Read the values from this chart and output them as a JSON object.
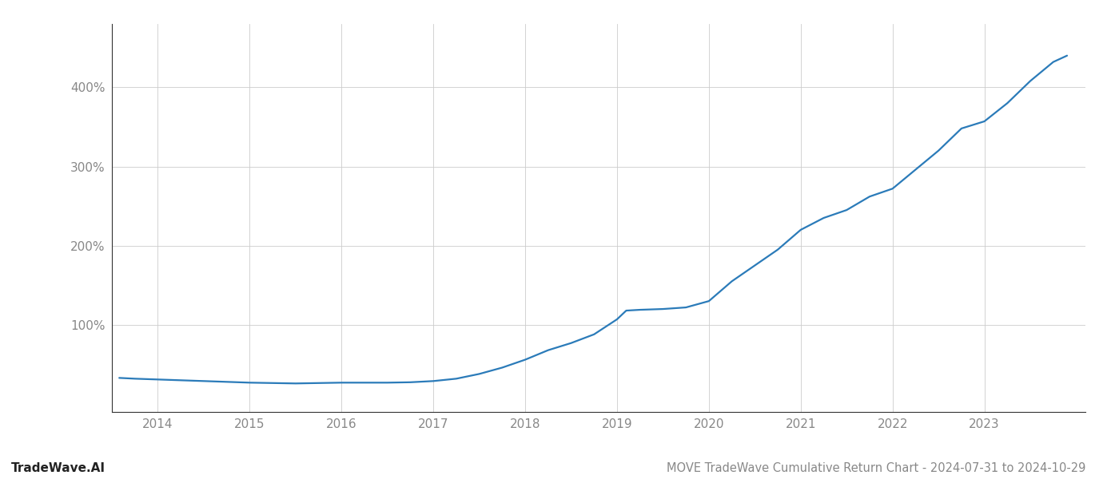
{
  "title": "MOVE TradeWave Cumulative Return Chart - 2024-07-31 to 2024-10-29",
  "watermark": "TradeWave.AI",
  "line_color": "#2b7bb9",
  "background_color": "#ffffff",
  "grid_color": "#cccccc",
  "x_years": [
    2013.58,
    2013.75,
    2014.0,
    2014.25,
    2014.5,
    2014.75,
    2015.0,
    2015.25,
    2015.5,
    2015.75,
    2016.0,
    2016.25,
    2016.5,
    2016.75,
    2017.0,
    2017.25,
    2017.5,
    2017.75,
    2018.0,
    2018.25,
    2018.5,
    2018.75,
    2019.0,
    2019.1,
    2019.25,
    2019.5,
    2019.75,
    2020.0,
    2020.25,
    2020.5,
    2020.75,
    2021.0,
    2021.25,
    2021.5,
    2021.75,
    2022.0,
    2022.25,
    2022.5,
    2022.75,
    2023.0,
    2023.25,
    2023.5,
    2023.75,
    2023.9
  ],
  "y_values": [
    33,
    32,
    31,
    30,
    29,
    28,
    27,
    26.5,
    26,
    26.5,
    27,
    27,
    27,
    27.5,
    29,
    32,
    38,
    46,
    56,
    68,
    77,
    88,
    107,
    118,
    119,
    120,
    122,
    130,
    155,
    175,
    195,
    220,
    235,
    245,
    262,
    272,
    296,
    320,
    348,
    357,
    380,
    408,
    432,
    440
  ],
  "yticks": [
    100,
    200,
    300,
    400
  ],
  "xlim": [
    2013.5,
    2024.1
  ],
  "ylim": [
    -10,
    480
  ],
  "xtick_years": [
    2014,
    2015,
    2016,
    2017,
    2018,
    2019,
    2020,
    2021,
    2022,
    2023
  ],
  "title_fontsize": 10.5,
  "watermark_fontsize": 11,
  "tick_fontsize": 11,
  "tick_color": "#888888",
  "spine_color": "#333333",
  "line_width": 1.6
}
